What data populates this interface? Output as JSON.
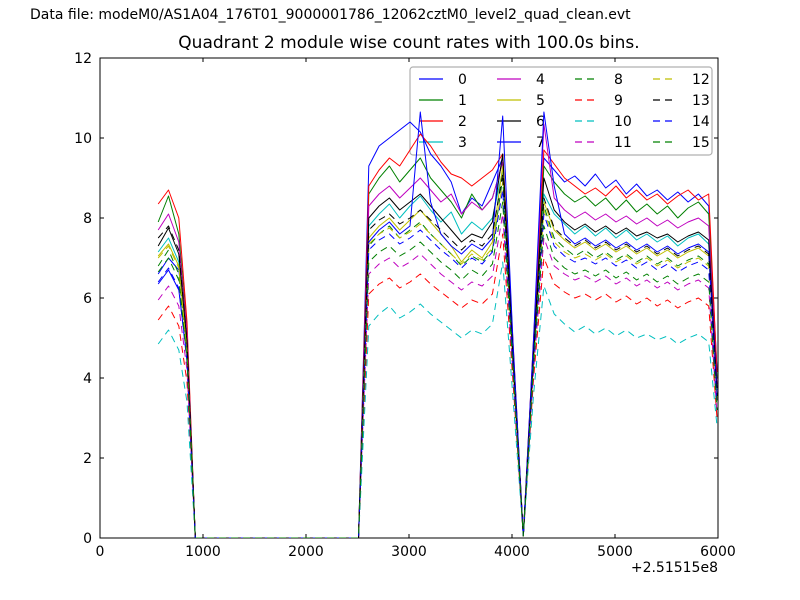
{
  "header": {
    "text": "Data file: modeM0/AS1A04_176T01_9000001786_12062cztM0_level2_quad_clean.evt"
  },
  "chart_data": {
    "type": "line",
    "title": "Quadrant 2 module wise count rates with 100.0s bins.",
    "xlabel": "",
    "ylabel": "",
    "x_offset_label": "+2.51515e8",
    "xlim": [
      0,
      6000
    ],
    "ylim": [
      0,
      12
    ],
    "x_ticks": [
      0,
      1000,
      2000,
      3000,
      4000,
      5000,
      6000
    ],
    "y_ticks": [
      0,
      2,
      4,
      6,
      8,
      10,
      12
    ],
    "grid": false,
    "legend_position": "upper right",
    "legend_columns": 4,
    "frame_color": "#000000",
    "legend_border_color": "#b0b0b0",
    "x": [
      565,
      665,
      765,
      845,
      925,
      2510,
      2610,
      2710,
      2810,
      2910,
      3010,
      3110,
      3210,
      3310,
      3410,
      3510,
      3610,
      3710,
      3810,
      3910,
      4010,
      4110,
      4210,
      4310,
      4410,
      4510,
      4610,
      4710,
      4810,
      4910,
      5010,
      5110,
      5210,
      5310,
      5410,
      5510,
      5610,
      5710,
      5810,
      5910,
      5990
    ],
    "series": [
      {
        "name": "0",
        "color": "#0000ff",
        "style": "solid",
        "values": [
          6.6,
          7.0,
          6.7,
          5.0,
          0,
          0,
          9.3,
          9.8,
          10.0,
          10.2,
          10.4,
          10.15,
          9.6,
          9.3,
          8.9,
          8.1,
          8.5,
          8.3,
          8.9,
          9.5,
          4.8,
          0.05,
          4.9,
          9.5,
          9.2,
          8.9,
          9.05,
          8.8,
          9.1,
          8.75,
          8.95,
          8.6,
          8.85,
          8.55,
          8.7,
          8.45,
          8.65,
          8.4,
          8.6,
          8.3,
          4.2
        ]
      },
      {
        "name": "1",
        "color": "#008000",
        "style": "solid",
        "values": [
          7.9,
          8.55,
          7.6,
          5.2,
          0,
          0,
          8.6,
          9.0,
          9.3,
          8.9,
          9.2,
          9.5,
          9.0,
          8.7,
          8.4,
          8.0,
          8.6,
          8.2,
          8.5,
          9.4,
          4.6,
          0.05,
          4.7,
          9.3,
          8.9,
          8.6,
          8.4,
          8.55,
          8.3,
          8.5,
          8.2,
          8.45,
          8.15,
          8.35,
          8.1,
          8.3,
          8.0,
          8.25,
          8.4,
          8.1,
          4.0
        ]
      },
      {
        "name": "2",
        "color": "#ff0000",
        "style": "solid",
        "values": [
          8.35,
          8.7,
          8.0,
          5.4,
          0,
          0,
          8.8,
          9.2,
          9.5,
          9.3,
          9.7,
          10.1,
          9.8,
          9.4,
          9.1,
          9.0,
          8.8,
          9.0,
          9.2,
          9.6,
          4.9,
          0.05,
          5.0,
          9.7,
          9.35,
          9.0,
          8.8,
          8.6,
          8.75,
          8.55,
          8.8,
          8.5,
          8.7,
          8.45,
          8.6,
          8.35,
          8.55,
          8.7,
          8.45,
          8.6,
          4.15
        ]
      },
      {
        "name": "3",
        "color": "#00bfbf",
        "style": "solid",
        "values": [
          7.15,
          7.5,
          6.9,
          4.8,
          0,
          0,
          7.8,
          8.1,
          8.35,
          8.0,
          8.3,
          8.55,
          8.2,
          7.9,
          8.15,
          7.6,
          7.9,
          7.7,
          8.0,
          9.2,
          4.5,
          0.05,
          4.6,
          8.6,
          8.1,
          7.85,
          7.6,
          7.8,
          7.55,
          7.75,
          7.5,
          7.7,
          7.45,
          7.6,
          7.4,
          7.55,
          7.3,
          7.5,
          7.6,
          7.35,
          3.7
        ]
      },
      {
        "name": "4",
        "color": "#bf00bf",
        "style": "solid",
        "values": [
          7.7,
          8.1,
          7.4,
          5.1,
          0,
          0,
          8.3,
          8.6,
          8.8,
          8.5,
          8.75,
          9.0,
          8.7,
          8.4,
          8.6,
          8.1,
          8.4,
          8.2,
          8.5,
          9.4,
          4.7,
          0.05,
          4.8,
          10.35,
          8.5,
          8.2,
          8.0,
          8.15,
          7.95,
          8.1,
          7.9,
          8.05,
          7.85,
          8.0,
          7.8,
          7.95,
          7.75,
          7.9,
          8.0,
          7.8,
          3.85
        ]
      },
      {
        "name": "5",
        "color": "#bfbf00",
        "style": "solid",
        "values": [
          7.05,
          7.35,
          6.8,
          4.7,
          0,
          0,
          7.5,
          7.8,
          8.0,
          7.7,
          7.95,
          8.2,
          7.9,
          7.6,
          7.3,
          6.9,
          7.2,
          7.0,
          7.4,
          9.3,
          4.4,
          0.05,
          4.5,
          8.4,
          7.7,
          7.45,
          7.25,
          7.4,
          7.2,
          7.35,
          7.15,
          7.3,
          7.1,
          7.25,
          7.05,
          7.2,
          7.0,
          7.15,
          7.25,
          7.05,
          3.5
        ]
      },
      {
        "name": "6",
        "color": "#000000",
        "style": "solid",
        "values": [
          7.3,
          7.75,
          7.1,
          4.9,
          0,
          0,
          8.0,
          8.3,
          8.5,
          8.2,
          8.4,
          8.6,
          8.3,
          8.0,
          7.7,
          7.4,
          7.6,
          7.5,
          7.9,
          9.6,
          4.6,
          0.05,
          4.7,
          9.0,
          8.2,
          7.9,
          7.7,
          7.85,
          7.65,
          7.8,
          7.6,
          7.75,
          7.55,
          7.65,
          7.5,
          7.6,
          7.4,
          7.55,
          7.65,
          7.45,
          3.75
        ]
      },
      {
        "name": "7",
        "color": "#0000ff",
        "style": "solid",
        "values": [
          6.35,
          6.7,
          6.2,
          4.5,
          0,
          0,
          7.4,
          7.7,
          7.9,
          7.6,
          7.8,
          10.65,
          8.4,
          7.6,
          7.3,
          7.1,
          7.35,
          7.2,
          7.5,
          10.55,
          4.9,
          0.05,
          5.0,
          10.65,
          8.8,
          7.6,
          7.35,
          7.5,
          7.3,
          7.45,
          7.25,
          7.4,
          7.2,
          7.35,
          7.15,
          7.3,
          7.1,
          7.25,
          7.35,
          7.15,
          3.6
        ]
      },
      {
        "name": "8",
        "color": "#008000",
        "style": "dashed",
        "values": [
          6.8,
          7.2,
          6.6,
          4.6,
          0,
          0,
          7.3,
          7.6,
          7.8,
          7.5,
          7.7,
          7.9,
          7.6,
          7.35,
          7.1,
          6.8,
          7.05,
          6.9,
          7.2,
          9.0,
          4.4,
          0.05,
          4.5,
          8.3,
          7.5,
          7.25,
          7.05,
          7.2,
          7.0,
          7.15,
          6.95,
          7.1,
          6.9,
          7.05,
          6.85,
          7.0,
          6.8,
          6.95,
          7.05,
          6.85,
          3.45
        ]
      },
      {
        "name": "9",
        "color": "#ff0000",
        "style": "dashed",
        "values": [
          5.45,
          5.8,
          5.3,
          3.9,
          0,
          0,
          6.1,
          6.35,
          6.5,
          6.25,
          6.4,
          6.6,
          6.35,
          6.15,
          5.95,
          5.75,
          5.95,
          5.85,
          6.1,
          7.6,
          3.9,
          0.05,
          4.0,
          7.0,
          6.35,
          6.15,
          6.0,
          6.1,
          5.95,
          6.1,
          5.9,
          6.05,
          5.85,
          6.0,
          5.8,
          5.95,
          5.75,
          5.9,
          6.0,
          5.8,
          3.0
        ]
      },
      {
        "name": "10",
        "color": "#00bfbf",
        "style": "dashed",
        "values": [
          4.85,
          5.2,
          4.7,
          3.4,
          0,
          0,
          5.3,
          5.6,
          5.8,
          5.5,
          5.65,
          5.85,
          5.6,
          5.4,
          5.2,
          5.0,
          5.2,
          5.1,
          5.35,
          6.9,
          3.5,
          0.05,
          3.6,
          6.3,
          5.6,
          5.35,
          5.15,
          5.3,
          5.1,
          5.25,
          5.05,
          5.2,
          5.0,
          5.1,
          4.95,
          5.05,
          4.85,
          5.0,
          5.1,
          4.9,
          2.8
        ]
      },
      {
        "name": "11",
        "color": "#bf00bf",
        "style": "dashed",
        "values": [
          5.95,
          6.3,
          5.8,
          4.2,
          0,
          0,
          6.6,
          6.85,
          7.0,
          6.75,
          6.9,
          7.1,
          6.85,
          6.6,
          6.4,
          6.2,
          6.4,
          6.3,
          6.55,
          8.1,
          4.1,
          0.05,
          4.2,
          7.5,
          6.8,
          6.6,
          6.45,
          6.55,
          6.4,
          6.55,
          6.35,
          6.5,
          6.3,
          6.45,
          6.25,
          6.4,
          6.2,
          6.35,
          6.45,
          6.25,
          3.1
        ]
      },
      {
        "name": "12",
        "color": "#bfbf00",
        "style": "dashed",
        "values": [
          7.0,
          7.3,
          6.75,
          4.65,
          0,
          0,
          7.35,
          7.6,
          7.75,
          7.5,
          7.65,
          7.85,
          7.6,
          7.35,
          7.1,
          6.85,
          7.1,
          6.95,
          7.25,
          8.9,
          4.35,
          0.05,
          4.45,
          8.2,
          7.4,
          7.15,
          7.0,
          7.1,
          6.95,
          7.1,
          6.9,
          7.05,
          6.85,
          7.0,
          6.8,
          6.95,
          6.75,
          6.9,
          7.0,
          6.8,
          3.4
        ]
      },
      {
        "name": "13",
        "color": "#000000",
        "style": "dashed",
        "values": [
          7.5,
          7.8,
          7.2,
          4.95,
          0,
          0,
          7.7,
          7.95,
          8.1,
          7.85,
          8.0,
          8.2,
          7.95,
          7.7,
          7.45,
          7.2,
          7.45,
          7.3,
          7.6,
          9.1,
          4.5,
          0.05,
          4.6,
          8.5,
          7.75,
          7.5,
          7.3,
          7.45,
          7.25,
          7.4,
          7.2,
          7.35,
          7.15,
          7.3,
          7.1,
          7.25,
          7.05,
          7.2,
          7.3,
          7.1,
          3.55
        ]
      },
      {
        "name": "14",
        "color": "#0000ff",
        "style": "dashed",
        "values": [
          6.4,
          6.75,
          6.25,
          4.4,
          0,
          0,
          7.2,
          7.45,
          7.6,
          7.35,
          7.5,
          7.7,
          7.45,
          7.2,
          7.0,
          6.75,
          7.0,
          6.85,
          7.15,
          8.7,
          4.3,
          0.05,
          4.4,
          8.1,
          7.3,
          7.05,
          6.9,
          7.0,
          6.85,
          7.0,
          6.8,
          6.95,
          6.75,
          6.9,
          6.7,
          6.85,
          6.65,
          6.8,
          6.9,
          6.7,
          3.35
        ]
      },
      {
        "name": "15",
        "color": "#008000",
        "style": "dashed",
        "values": [
          6.65,
          7.0,
          6.45,
          4.5,
          0,
          0,
          6.9,
          7.15,
          7.3,
          7.05,
          7.2,
          7.4,
          7.15,
          6.9,
          6.7,
          6.45,
          6.7,
          6.55,
          6.85,
          8.4,
          4.2,
          0.05,
          4.3,
          7.8,
          7.0,
          6.75,
          6.6,
          6.7,
          6.55,
          6.7,
          6.5,
          6.65,
          6.45,
          6.6,
          6.4,
          6.55,
          6.35,
          6.5,
          6.6,
          6.4,
          3.2
        ]
      }
    ]
  }
}
